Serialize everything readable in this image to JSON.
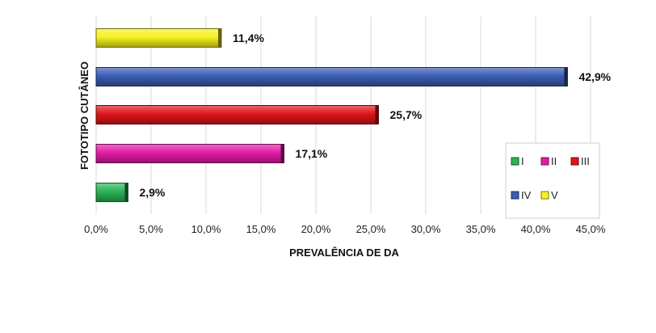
{
  "chart_data": {
    "type": "bar",
    "orientation": "horizontal",
    "title": "",
    "xlabel": "PREVALÊNCIA DE DA",
    "ylabel": "FOTOTIPO CUTÂNEO",
    "xlim": [
      0,
      45
    ],
    "x_ticks": [
      "0,0%",
      "5,0%",
      "10,0%",
      "15,0%",
      "20,0%",
      "25,0%",
      "30,0%",
      "35,0%",
      "40,0%",
      "45,0%"
    ],
    "grid": "vertical",
    "categories": [
      "I",
      "II",
      "III",
      "IV",
      "V"
    ],
    "values": [
      2.9,
      17.1,
      25.7,
      42.9,
      11.4
    ],
    "value_labels": [
      "2,9%",
      "17,1%",
      "25,7%",
      "42,9%",
      "11,4%"
    ],
    "colors": [
      "#2bb455",
      "#e31ca8",
      "#e0141b",
      "#3a5db5",
      "#f6f21e"
    ],
    "legend": {
      "position": "bottom-right",
      "entries": [
        "I",
        "II",
        "III",
        "IV",
        "V"
      ]
    }
  }
}
